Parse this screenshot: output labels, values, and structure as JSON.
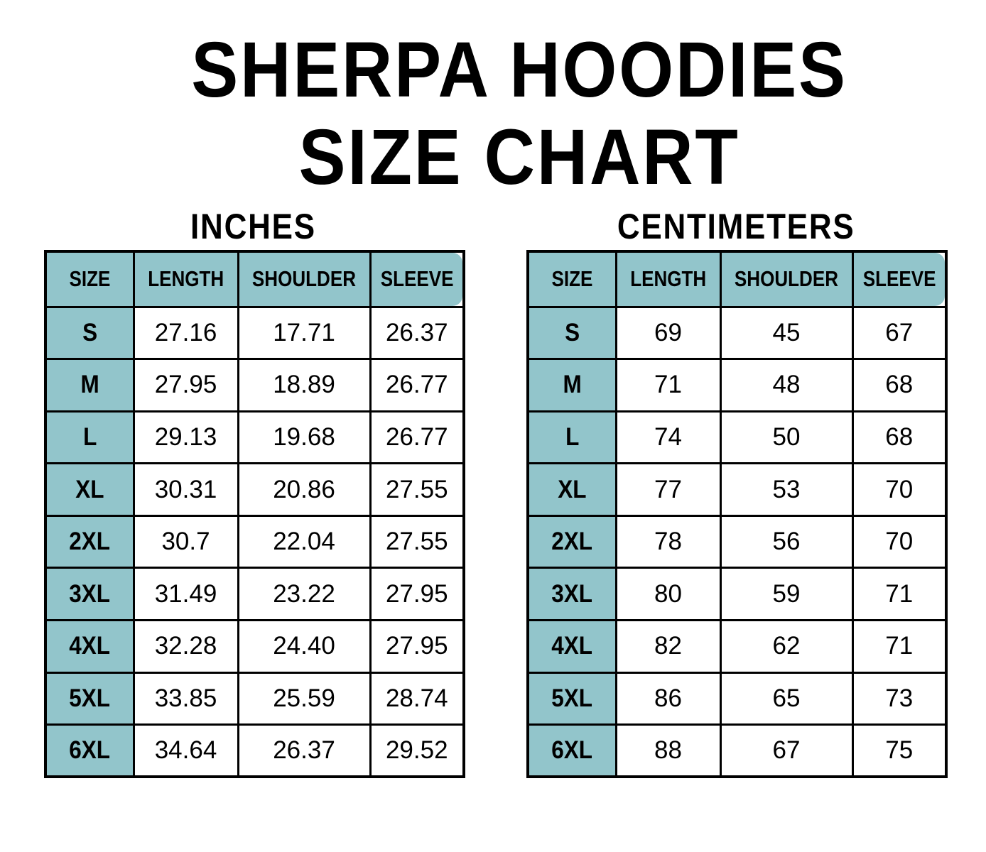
{
  "page": {
    "title_line1": "SHERPA HOODIES",
    "title_line2": "SIZE CHART"
  },
  "colors": {
    "header_fill": "#92C5CB",
    "border": "#000000",
    "text": "#000000",
    "background": "#FFFFFF"
  },
  "tables": [
    {
      "title": "INCHES",
      "columns": [
        "SIZE",
        "LENGTH",
        "SHOULDER",
        "SLEEVE"
      ],
      "rows": [
        {
          "size": "S",
          "values": [
            "27.16",
            "17.71",
            "26.37"
          ]
        },
        {
          "size": "M",
          "values": [
            "27.95",
            "18.89",
            "26.77"
          ]
        },
        {
          "size": "L",
          "values": [
            "29.13",
            "19.68",
            "26.77"
          ]
        },
        {
          "size": "XL",
          "values": [
            "30.31",
            "20.86",
            "27.55"
          ]
        },
        {
          "size": "2XL",
          "values": [
            "30.7",
            "22.04",
            "27.55"
          ]
        },
        {
          "size": "3XL",
          "values": [
            "31.49",
            "23.22",
            "27.95"
          ]
        },
        {
          "size": "4XL",
          "values": [
            "32.28",
            "24.40",
            "27.95"
          ]
        },
        {
          "size": "5XL",
          "values": [
            "33.85",
            "25.59",
            "28.74"
          ]
        },
        {
          "size": "6XL",
          "values": [
            "34.64",
            "26.37",
            "29.52"
          ]
        }
      ]
    },
    {
      "title": "CENTIMETERS",
      "columns": [
        "SIZE",
        "LENGTH",
        "SHOULDER",
        "SLEEVE"
      ],
      "rows": [
        {
          "size": "S",
          "values": [
            "69",
            "45",
            "67"
          ]
        },
        {
          "size": "M",
          "values": [
            "71",
            "48",
            "68"
          ]
        },
        {
          "size": "L",
          "values": [
            "74",
            "50",
            "68"
          ]
        },
        {
          "size": "XL",
          "values": [
            "77",
            "53",
            "70"
          ]
        },
        {
          "size": "2XL",
          "values": [
            "78",
            "56",
            "70"
          ]
        },
        {
          "size": "3XL",
          "values": [
            "80",
            "59",
            "71"
          ]
        },
        {
          "size": "4XL",
          "values": [
            "82",
            "62",
            "71"
          ]
        },
        {
          "size": "5XL",
          "values": [
            "86",
            "65",
            "73"
          ]
        },
        {
          "size": "6XL",
          "values": [
            "88",
            "67",
            "75"
          ]
        }
      ]
    }
  ],
  "chart_data": [
    {
      "type": "table",
      "title": "INCHES",
      "columns": [
        "SIZE",
        "LENGTH",
        "SHOULDER",
        "SLEEVE"
      ],
      "rows": [
        [
          "S",
          27.16,
          17.71,
          26.37
        ],
        [
          "M",
          27.95,
          18.89,
          26.77
        ],
        [
          "L",
          29.13,
          19.68,
          26.77
        ],
        [
          "XL",
          30.31,
          20.86,
          27.55
        ],
        [
          "2XL",
          30.7,
          22.04,
          27.55
        ],
        [
          "3XL",
          31.49,
          23.22,
          27.95
        ],
        [
          "4XL",
          32.28,
          24.4,
          27.95
        ],
        [
          "5XL",
          33.85,
          25.59,
          28.74
        ],
        [
          "6XL",
          34.64,
          26.37,
          29.52
        ]
      ]
    },
    {
      "type": "table",
      "title": "CENTIMETERS",
      "columns": [
        "SIZE",
        "LENGTH",
        "SHOULDER",
        "SLEEVE"
      ],
      "rows": [
        [
          "S",
          69,
          45,
          67
        ],
        [
          "M",
          71,
          48,
          68
        ],
        [
          "L",
          74,
          50,
          68
        ],
        [
          "XL",
          77,
          53,
          70
        ],
        [
          "2XL",
          78,
          56,
          70
        ],
        [
          "3XL",
          80,
          59,
          71
        ],
        [
          "4XL",
          82,
          62,
          71
        ],
        [
          "5XL",
          86,
          65,
          73
        ],
        [
          "6XL",
          88,
          67,
          75
        ]
      ]
    }
  ]
}
